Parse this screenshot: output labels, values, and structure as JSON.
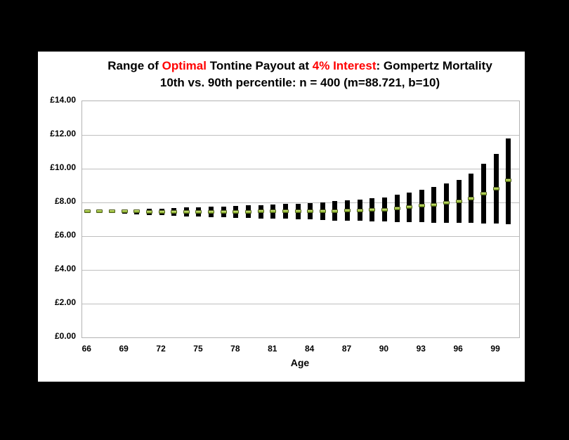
{
  "frame": {
    "background_color": "#000000",
    "panel_background_color": "#FFFFFF"
  },
  "title": {
    "line1_segments": [
      {
        "text": "Range of ",
        "color": "#000000"
      },
      {
        "text": "Optimal",
        "color": "#FF0000"
      },
      {
        "text": " Tontine Payout at ",
        "color": "#000000"
      },
      {
        "text": "4% Interest",
        "color": "#FF0000"
      },
      {
        "text": ": Gompertz Mortality",
        "color": "#000000"
      }
    ],
    "line2": "10th vs. 90th percentile: n = 400 (m=88.721, b=10)"
  },
  "chart_data": {
    "type": "bar",
    "subtype": "high-low range bars with mid markers",
    "title": "Range of Optimal Tontine Payout at 4% Interest: Gompertz Mortality",
    "subtitle": "10th vs. 90th percentile: n = 400 (m=88.721, b=10)",
    "xlabel": "Age",
    "ylabel": "",
    "ylim": [
      0,
      14
    ],
    "y_gridline_step": 2,
    "grid_on": true,
    "legend": "none",
    "bar_color": "#000000",
    "marker_color": "#A3C93E",
    "grid_color": "#BFBFBF",
    "currency_symbol": "£",
    "y_tick_labels": [
      "£0.00",
      "£2.00",
      "£4.00",
      "£6.00",
      "£8.00",
      "£10.00",
      "£12.00",
      "£14.00"
    ],
    "x_tick_labels": [
      "66",
      "69",
      "72",
      "75",
      "78",
      "81",
      "84",
      "87",
      "90",
      "93",
      "96",
      "99"
    ],
    "x": [
      66,
      67,
      68,
      69,
      70,
      71,
      72,
      73,
      74,
      75,
      76,
      77,
      78,
      79,
      80,
      81,
      82,
      83,
      84,
      85,
      86,
      87,
      88,
      89,
      90,
      91,
      92,
      93,
      94,
      95,
      96,
      97,
      98,
      99,
      100
    ],
    "series": [
      {
        "name": "10th percentile (bar low)",
        "values": [
          7.43,
          7.4,
          7.37,
          7.34,
          7.31,
          7.27,
          7.24,
          7.21,
          7.18,
          7.16,
          7.14,
          7.12,
          7.1,
          7.08,
          7.06,
          7.05,
          7.03,
          7.0,
          6.98,
          6.95,
          6.93,
          6.92,
          6.9,
          6.88,
          6.86,
          6.85,
          6.84,
          6.82,
          6.81,
          6.8,
          6.79,
          6.78,
          6.77,
          6.76,
          6.72
        ]
      },
      {
        "name": "90th percentile (bar high)",
        "values": [
          7.52,
          7.54,
          7.56,
          7.58,
          7.6,
          7.62,
          7.64,
          7.67,
          7.69,
          7.72,
          7.74,
          7.77,
          7.8,
          7.82,
          7.85,
          7.87,
          7.9,
          7.93,
          7.97,
          8.02,
          8.07,
          8.12,
          8.18,
          8.24,
          8.3,
          8.45,
          8.6,
          8.77,
          8.92,
          9.12,
          9.33,
          9.71,
          10.3,
          10.87,
          11.79
        ]
      },
      {
        "name": "mid marker",
        "values": [
          7.48,
          7.47,
          7.47,
          7.46,
          7.46,
          7.45,
          7.44,
          7.44,
          7.44,
          7.44,
          7.44,
          7.45,
          7.45,
          7.45,
          7.46,
          7.46,
          7.47,
          7.47,
          7.48,
          7.49,
          7.5,
          7.52,
          7.54,
          7.56,
          7.58,
          7.65,
          7.72,
          7.8,
          7.87,
          7.96,
          8.06,
          8.25,
          8.54,
          8.82,
          9.3
        ]
      }
    ]
  }
}
